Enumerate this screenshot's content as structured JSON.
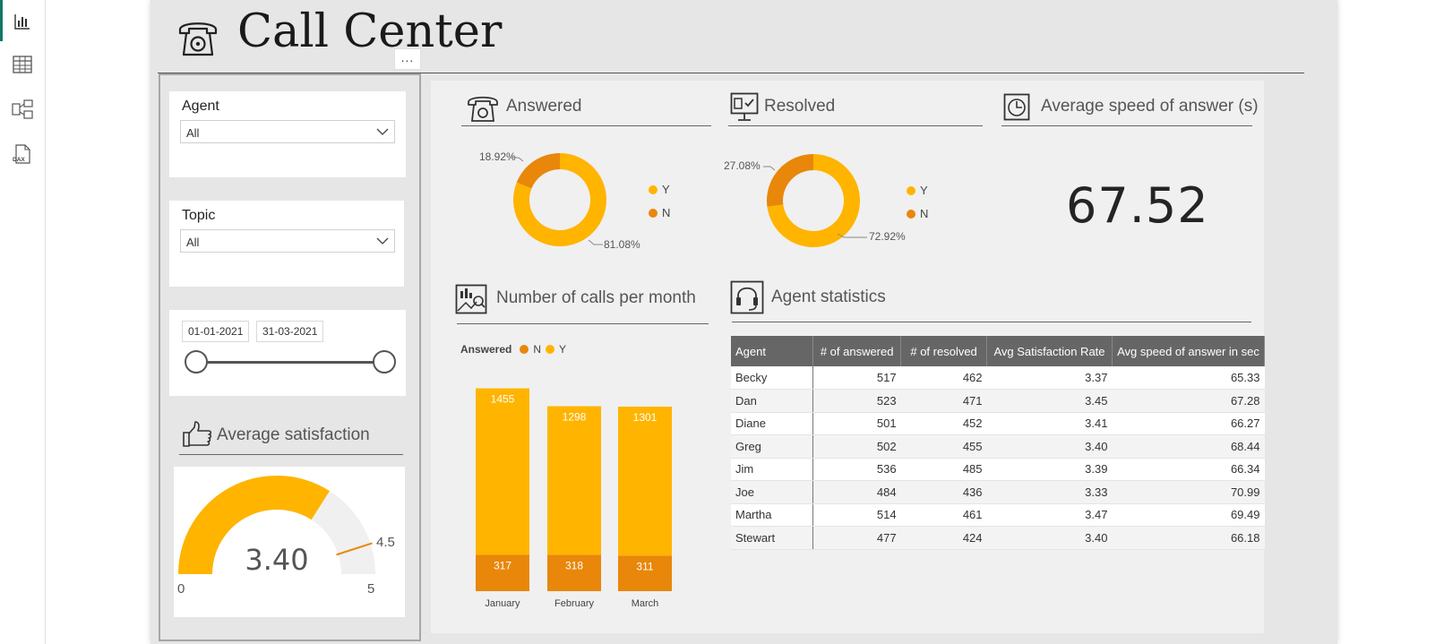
{
  "nav": {
    "items": [
      {
        "name": "report-view-icon"
      },
      {
        "name": "data-view-icon"
      },
      {
        "name": "model-view-icon"
      },
      {
        "name": "dax-query-view-icon",
        "label": "DAX"
      }
    ]
  },
  "page": {
    "title": "Call Center",
    "more_options": "..."
  },
  "filters": {
    "agent": {
      "label": "Agent",
      "value": "All"
    },
    "topic": {
      "label": "Topic",
      "value": "All"
    },
    "date": {
      "start": "01-01-2021",
      "end": "31-03-2021"
    }
  },
  "satisfaction": {
    "title": "Average satisfaction",
    "value": "3.40",
    "min": "0",
    "max": "5",
    "target": "4.5",
    "value_num": 3.4,
    "min_num": 0,
    "max_num": 5,
    "target_num": 4.5
  },
  "answered": {
    "title": "Answered",
    "slices": [
      {
        "label": "Y",
        "percent": 81.08,
        "percent_label": "81.08%",
        "color": "#FFB400"
      },
      {
        "label": "N",
        "percent": 18.92,
        "percent_label": "18.92%",
        "color": "#E8870A"
      }
    ]
  },
  "resolved": {
    "title": "Resolved",
    "slices": [
      {
        "label": "Y",
        "percent": 72.92,
        "percent_label": "72.92%",
        "color": "#FFB400"
      },
      {
        "label": "N",
        "percent": 27.08,
        "percent_label": "27.08%",
        "color": "#E8870A"
      }
    ]
  },
  "speed": {
    "title": "Average speed of answer (s)",
    "value": "67.52"
  },
  "calls_per_month": {
    "title": "Number of calls per month",
    "legend_title": "Answered",
    "legend": [
      {
        "label": "N",
        "color": "#E8870A"
      },
      {
        "label": "Y",
        "color": "#FFB400"
      }
    ]
  },
  "chart_data": {
    "type": "bar",
    "stacked": true,
    "categories": [
      "January",
      "February",
      "March"
    ],
    "series": [
      {
        "name": "N",
        "values": [
          317,
          318,
          311
        ],
        "color": "#E8870A"
      },
      {
        "name": "Y",
        "values": [
          1455,
          1298,
          1301
        ],
        "color": "#FFB400"
      }
    ]
  },
  "agent_stats": {
    "title": "Agent statistics",
    "columns": [
      "Agent",
      "# of answered",
      "# of resolved",
      "Avg Satisfaction Rate",
      "Avg speed of answer in sec"
    ],
    "rows": [
      [
        "Becky",
        "517",
        "462",
        "3.37",
        "65.33"
      ],
      [
        "Dan",
        "523",
        "471",
        "3.45",
        "67.28"
      ],
      [
        "Diane",
        "501",
        "452",
        "3.41",
        "66.27"
      ],
      [
        "Greg",
        "502",
        "455",
        "3.40",
        "68.44"
      ],
      [
        "Jim",
        "536",
        "485",
        "3.39",
        "66.34"
      ],
      [
        "Joe",
        "484",
        "436",
        "3.33",
        "70.99"
      ],
      [
        "Martha",
        "514",
        "461",
        "3.47",
        "69.49"
      ],
      [
        "Stewart",
        "477",
        "424",
        "3.40",
        "66.18"
      ]
    ]
  },
  "colors": {
    "accent_y": "#FFB400",
    "accent_n": "#E8870A",
    "nav_active": "#117865",
    "header_bg": "#666666"
  }
}
